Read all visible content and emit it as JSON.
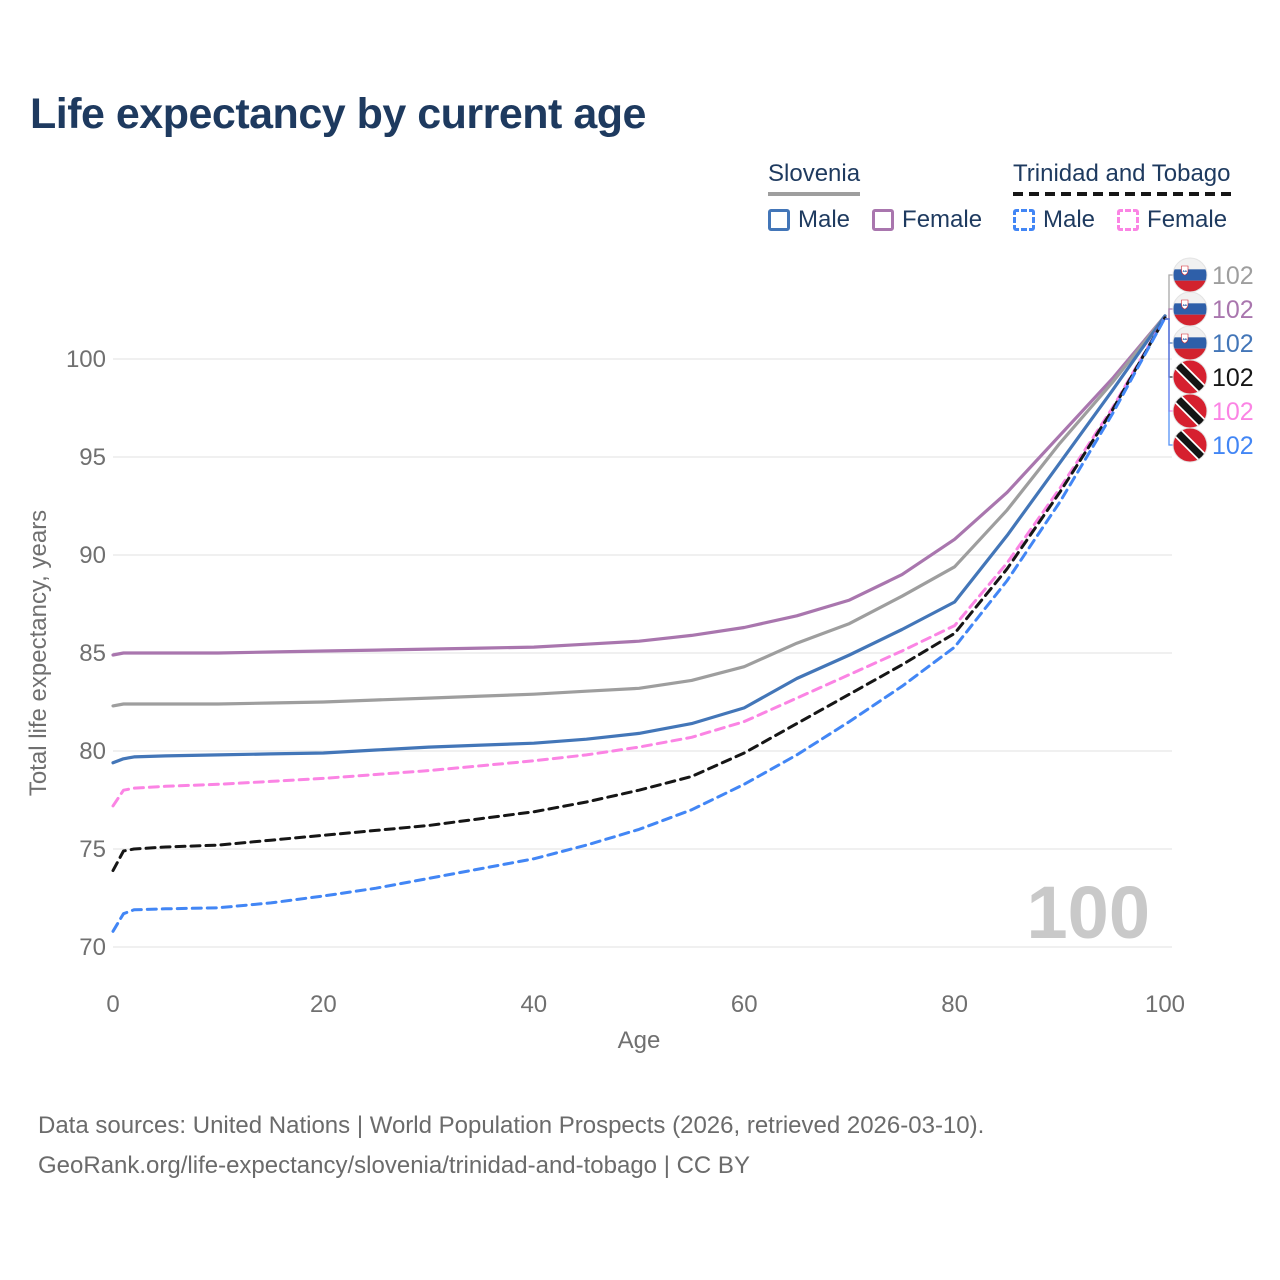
{
  "title": "Life expectancy by current age",
  "legend": {
    "groups": [
      {
        "label": "Slovenia",
        "underline_color": "#9e9e9e",
        "dash": false,
        "items": [
          {
            "label": "Male",
            "color": "#4376b8",
            "dash": false
          },
          {
            "label": "Female",
            "color": "#a976ae",
            "dash": false
          }
        ]
      },
      {
        "label": "Trinidad and Tobago",
        "underline_color": "#161616",
        "dash": true,
        "items": [
          {
            "label": "Male",
            "color": "#4286f5",
            "dash": true
          },
          {
            "label": "Female",
            "color": "#fb84e4",
            "dash": true
          }
        ]
      }
    ]
  },
  "watermark": "100",
  "footer": {
    "line1": "Data sources: United Nations | World Population Prospects (2026, retrieved 2026-03-10).",
    "line2": "GeoRank.org/life-expectancy/slovenia/trinidad-and-tobago | CC BY"
  },
  "chart_data": {
    "type": "line",
    "title": "Life expectancy by current age",
    "xlabel": "Age",
    "ylabel": "Total life expectancy, years",
    "x_ticks": [
      0,
      20,
      40,
      60,
      80,
      100
    ],
    "y_ticks": [
      70,
      75,
      80,
      85,
      90,
      95,
      100
    ],
    "xlim": [
      0,
      100
    ],
    "ylim": [
      70,
      102.5
    ],
    "grid": "horizontal",
    "x": [
      0,
      1,
      2,
      5,
      10,
      15,
      20,
      25,
      30,
      35,
      40,
      45,
      50,
      55,
      60,
      65,
      70,
      75,
      80,
      85,
      90,
      95,
      100
    ],
    "series": [
      {
        "id": "slovenia-female",
        "name": "Slovenia Female",
        "country": "Slovenia",
        "sex": "Female",
        "color": "#a976ae",
        "dash": false,
        "values": [
          84.9,
          85.0,
          85.0,
          85.0,
          85.0,
          85.05,
          85.1,
          85.15,
          85.2,
          85.25,
          85.3,
          85.45,
          85.6,
          85.9,
          86.3,
          86.9,
          87.7,
          89.0,
          90.8,
          93.2,
          96.1,
          99.0,
          102.2
        ]
      },
      {
        "id": "slovenia-total",
        "name": "Slovenia Both sexes",
        "country": "Slovenia",
        "sex": "Both",
        "color": "#9e9e9e",
        "dash": false,
        "values": [
          82.3,
          82.4,
          82.4,
          82.4,
          82.4,
          82.45,
          82.5,
          82.6,
          82.7,
          82.8,
          82.9,
          83.05,
          83.2,
          83.6,
          84.3,
          85.5,
          86.5,
          87.9,
          89.4,
          92.3,
          95.7,
          98.8,
          102.2
        ]
      },
      {
        "id": "slovenia-male",
        "name": "Slovenia Male",
        "country": "Slovenia",
        "sex": "Male",
        "color": "#4376b8",
        "dash": false,
        "values": [
          79.4,
          79.6,
          79.7,
          79.75,
          79.8,
          79.85,
          79.9,
          80.05,
          80.2,
          80.3,
          80.4,
          80.6,
          80.9,
          81.4,
          82.2,
          83.7,
          84.9,
          86.2,
          87.6,
          91.0,
          94.7,
          98.4,
          102.2
        ]
      },
      {
        "id": "trinidad-and-tobago-female",
        "name": "Trinidad and Tobago Female",
        "country": "Trinidad and Tobago",
        "sex": "Female",
        "color": "#fb84e4",
        "dash": true,
        "values": [
          77.2,
          78.0,
          78.1,
          78.2,
          78.3,
          78.45,
          78.6,
          78.8,
          79.0,
          79.25,
          79.5,
          79.8,
          80.2,
          80.7,
          81.5,
          82.7,
          83.9,
          85.1,
          86.4,
          89.6,
          93.4,
          97.5,
          102.1
        ]
      },
      {
        "id": "trinidad-and-tobago-total",
        "name": "Trinidad and Tobago Both sexes",
        "country": "Trinidad and Tobago",
        "sex": "Both",
        "color": "#161616",
        "dash": true,
        "values": [
          73.9,
          74.9,
          75.0,
          75.1,
          75.2,
          75.45,
          75.7,
          75.95,
          76.2,
          76.55,
          76.9,
          77.4,
          78.0,
          78.7,
          79.9,
          81.4,
          82.9,
          84.4,
          86.0,
          89.3,
          93.2,
          97.4,
          102.1
        ]
      },
      {
        "id": "trinidad-and-tobago-male",
        "name": "Trinidad and Tobago Male",
        "country": "Trinidad and Tobago",
        "sex": "Male",
        "color": "#4286f5",
        "dash": true,
        "values": [
          70.8,
          71.7,
          71.9,
          71.95,
          72.0,
          72.25,
          72.6,
          73.0,
          73.5,
          74.0,
          74.5,
          75.2,
          76.0,
          77.0,
          78.3,
          79.8,
          81.5,
          83.3,
          85.3,
          88.7,
          92.7,
          97.2,
          102.1
        ]
      }
    ],
    "end_labels": [
      {
        "flag": "slovenia",
        "value": "102",
        "color": "#9e9e9e"
      },
      {
        "flag": "slovenia",
        "value": "102",
        "color": "#a976ae"
      },
      {
        "flag": "slovenia",
        "value": "102",
        "color": "#4376b8"
      },
      {
        "flag": "trinidad-and-tobago",
        "value": "102",
        "color": "#161616"
      },
      {
        "flag": "trinidad-and-tobago",
        "value": "102",
        "color": "#fb84e4"
      },
      {
        "flag": "trinidad-and-tobago",
        "value": "102",
        "color": "#4286f5"
      }
    ]
  }
}
